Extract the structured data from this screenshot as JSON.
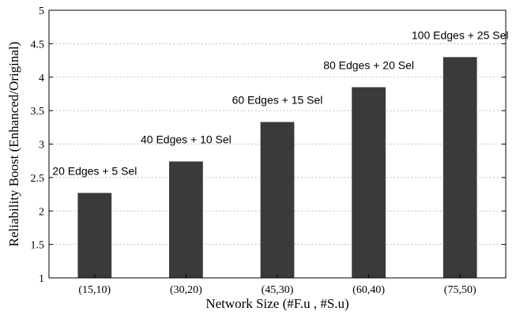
{
  "chart_data": {
    "type": "bar",
    "categories": [
      "(15,10)",
      "(30,20)",
      "(45,30)",
      "(60,40)",
      "(75,50)"
    ],
    "values": [
      2.27,
      2.74,
      3.33,
      3.85,
      4.3
    ],
    "annotations": [
      "20 Edges + 5 Sel",
      "40 Edges + 10 Sel",
      "60 Edges + 15 Sel",
      "80 Edges + 20 Sel",
      "100 Edges + 25 Sel"
    ],
    "xlabel": "Network Size (#F.u , #S.u)",
    "ylabel": "Reliability Boost (Enhanced/Original)",
    "ylim": [
      1,
      5
    ],
    "yticks": [
      1,
      1.5,
      2,
      2.5,
      3,
      3.5,
      4,
      4.5,
      5
    ],
    "ytick_labels": [
      "1",
      "1.5",
      "2",
      "2.5",
      "3",
      "3.5",
      "4",
      "4.5",
      "5"
    ],
    "grid": "horizontal dotted",
    "bar_color": "#3a3a3a"
  }
}
